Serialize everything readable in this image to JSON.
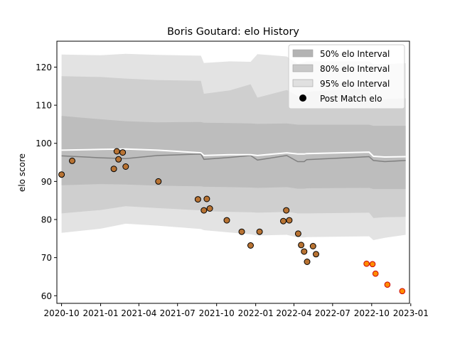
{
  "chart_data": {
    "type": "line",
    "title": "Boris Goutard: elo History",
    "xlabel": "",
    "ylabel": "elo score",
    "xlim": [
      "2020-09-20",
      "2022-12-29"
    ],
    "ylim": [
      58,
      126.8
    ],
    "x_ticks": [
      "2020-10",
      "2021-01",
      "2021-04",
      "2021-07",
      "2021-10",
      "2022-01",
      "2022-04",
      "2022-07",
      "2022-10",
      "2023-01"
    ],
    "y_ticks": [
      60,
      70,
      80,
      90,
      100,
      110,
      120
    ],
    "grid": false,
    "legend_position": "upper right",
    "legend": [
      {
        "label": "50% elo Interval",
        "kind": "patch",
        "color": "#b3b3b3"
      },
      {
        "label": "80% elo Interval",
        "kind": "patch",
        "color": "#c8c8c8"
      },
      {
        "label": "95% elo Interval",
        "kind": "patch",
        "color": "#e0e0e0"
      },
      {
        "label": "Post Match elo",
        "kind": "marker",
        "color": "#000000"
      }
    ],
    "colors": {
      "band95": "#e3e3e3",
      "band80": "#cfcfcf",
      "band50": "#bdbdbd",
      "mean_line": "#808080",
      "white_line": "#ffffff",
      "past_point": "#b87333",
      "future_point": "#ff8c00",
      "future_edge": "#cc0000"
    },
    "rating_series": {
      "x": [
        "2020-10-01",
        "2021-01-01",
        "2021-03-01",
        "2021-05-15",
        "2021-08-25",
        "2021-09-01",
        "2021-11-01",
        "2021-12-20",
        "2022-01-05",
        "2022-03-15",
        "2022-04-10",
        "2022-04-25",
        "2022-05-01",
        "2022-09-25",
        "2022-10-05",
        "2022-11-01",
        "2022-12-20"
      ],
      "mean": [
        96.7,
        96.2,
        96.0,
        96.8,
        97.2,
        95.8,
        96.3,
        96.8,
        95.6,
        96.8,
        95.2,
        95.2,
        95.7,
        96.5,
        95.5,
        95.2,
        95.5
      ],
      "white": [
        98.2,
        98.4,
        98.5,
        98.2,
        97.5,
        96.8,
        97.0,
        97.0,
        96.8,
        97.5,
        97.2,
        97.2,
        97.3,
        97.7,
        96.6,
        96.4,
        96.5
      ],
      "p50_low": [
        89.0,
        89.3,
        89.2,
        88.9,
        88.7,
        88.6,
        88.5,
        88.4,
        88.3,
        88.5,
        88.1,
        88.1,
        88.2,
        88.3,
        88.0,
        88.0,
        88.0
      ],
      "p50_high": [
        107.2,
        106.3,
        105.8,
        105.5,
        105.6,
        105.4,
        105.3,
        105.2,
        105.1,
        105.2,
        104.9,
        104.9,
        104.9,
        104.9,
        104.6,
        104.6,
        104.6
      ],
      "p80_low": [
        81.6,
        82.5,
        83.5,
        83.0,
        82.4,
        82.2,
        82.0,
        81.9,
        81.8,
        82.0,
        81.6,
        81.6,
        81.6,
        81.8,
        80.4,
        80.6,
        80.7
      ],
      "p80_high": [
        117.6,
        117.4,
        117.0,
        116.6,
        116.4,
        113.0,
        113.9,
        115.5,
        112.0,
        114.0,
        112.4,
        113.0,
        113.5,
        114.5,
        111.6,
        111.6,
        111.8
      ],
      "p95_low": [
        76.5,
        77.6,
        78.9,
        78.4,
        77.5,
        77.2,
        76.6,
        76.1,
        75.8,
        76.0,
        75.3,
        75.3,
        75.4,
        75.6,
        74.6,
        75.2,
        76.0
      ],
      "p95_high": [
        123.3,
        123.1,
        123.5,
        123.2,
        123.0,
        121.1,
        121.5,
        121.4,
        123.4,
        122.8,
        120.8,
        121.3,
        121.5,
        121.5,
        120.8,
        120.8,
        121.0
      ]
    },
    "post_match_elo": [
      {
        "x": "2020-10-01",
        "y": 91.8
      },
      {
        "x": "2020-10-26",
        "y": 95.4
      },
      {
        "x": "2021-02-01",
        "y": 93.3
      },
      {
        "x": "2021-02-08",
        "y": 97.9
      },
      {
        "x": "2021-02-12",
        "y": 95.8
      },
      {
        "x": "2021-02-22",
        "y": 97.6
      },
      {
        "x": "2021-03-01",
        "y": 93.9
      },
      {
        "x": "2021-05-17",
        "y": 90.0
      },
      {
        "x": "2021-08-18",
        "y": 85.3
      },
      {
        "x": "2021-09-01",
        "y": 82.4
      },
      {
        "x": "2021-09-08",
        "y": 85.4
      },
      {
        "x": "2021-09-15",
        "y": 82.9
      },
      {
        "x": "2021-10-25",
        "y": 79.8
      },
      {
        "x": "2021-11-29",
        "y": 76.8
      },
      {
        "x": "2021-12-20",
        "y": 73.2
      },
      {
        "x": "2022-01-10",
        "y": 76.8
      },
      {
        "x": "2022-03-07",
        "y": 79.6
      },
      {
        "x": "2022-03-14",
        "y": 82.4
      },
      {
        "x": "2022-03-21",
        "y": 79.8
      },
      {
        "x": "2022-04-11",
        "y": 76.3
      },
      {
        "x": "2022-04-18",
        "y": 73.3
      },
      {
        "x": "2022-04-25",
        "y": 71.6
      },
      {
        "x": "2022-05-02",
        "y": 68.9
      },
      {
        "x": "2022-05-16",
        "y": 73.0
      },
      {
        "x": "2022-05-23",
        "y": 70.9
      }
    ],
    "post_match_elo_later": [
      {
        "x": "2022-09-19",
        "y": 68.4
      },
      {
        "x": "2022-10-03",
        "y": 68.3
      },
      {
        "x": "2022-10-10",
        "y": 65.8
      },
      {
        "x": "2022-11-07",
        "y": 62.9
      },
      {
        "x": "2022-12-12",
        "y": 61.2
      }
    ]
  }
}
